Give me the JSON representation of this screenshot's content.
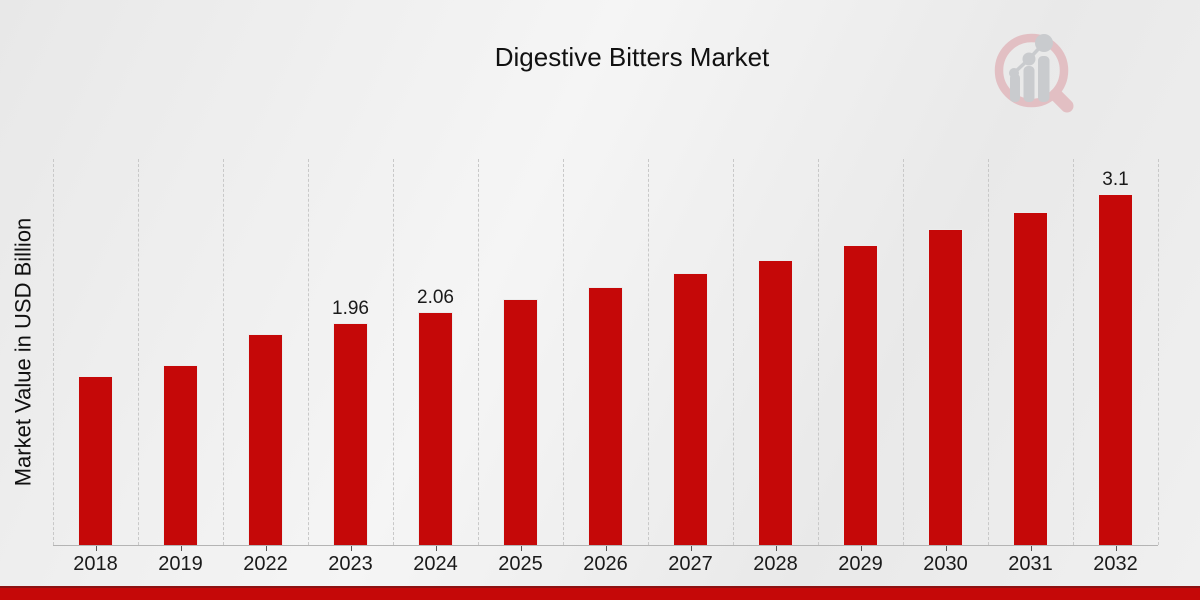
{
  "header": {
    "title": "Digestive Bitters Market"
  },
  "branding": {
    "logo_icon": "magnifier-bar-chart-logo",
    "ring_color": "#e2bcc0",
    "glyph_color": "#c7c9cc"
  },
  "chart_data": {
    "type": "bar",
    "title": "Digestive Bitters Market",
    "xlabel": "",
    "ylabel": "Market Value in USD Billion",
    "categories": [
      "2018",
      "2019",
      "2022",
      "2023",
      "2024",
      "2025",
      "2026",
      "2027",
      "2028",
      "2029",
      "2030",
      "2031",
      "2032"
    ],
    "values": [
      1.49,
      1.59,
      1.86,
      1.96,
      2.06,
      2.17,
      2.28,
      2.4,
      2.52,
      2.65,
      2.79,
      2.94,
      3.1
    ],
    "bar_value_labels": [
      "",
      "",
      "",
      "1.96",
      "2.06",
      "",
      "",
      "",
      "",
      "",
      "",
      "",
      "3.1"
    ],
    "ylim": [
      0,
      3.41
    ],
    "grid": "vertical-dashed-gridlines",
    "legend": "none",
    "bar_color": "#c50808",
    "bar_edge_color": "#ececec"
  },
  "footer": {
    "accent_band_color": "#c50808",
    "accent_band_edge_color": "#8d1212"
  }
}
